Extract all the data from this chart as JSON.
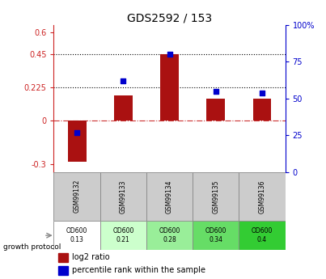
{
  "title": "GDS2592 / 153",
  "samples": [
    "GSM99132",
    "GSM99133",
    "GSM99134",
    "GSM99135",
    "GSM99136"
  ],
  "log2_ratio": [
    -0.28,
    0.17,
    0.45,
    0.15,
    0.15
  ],
  "percentile_rank": [
    27,
    62,
    80,
    55,
    54
  ],
  "bar_color": "#aa1111",
  "dot_color": "#0000cc",
  "left_yticks": [
    -0.3,
    0.0,
    0.225,
    0.45,
    0.6
  ],
  "left_ylabels": [
    "-0.3",
    "0",
    "0.225",
    "0.45",
    "0.6"
  ],
  "right_yticks": [
    0,
    25,
    50,
    75,
    100
  ],
  "right_ylabels": [
    "0",
    "25",
    "50",
    "75",
    "100%"
  ],
  "ymin": -0.35,
  "ymax": 0.65,
  "hlines": [
    0.225,
    0.45
  ],
  "zero_line": 0.0,
  "growth_protocol_label": "growth protocol",
  "protocol_values": [
    "OD600\n0.13",
    "OD600\n0.21",
    "OD600\n0.28",
    "OD600\n0.34",
    "OD600\n0.4"
  ],
  "cell_colors": [
    "#ffffff",
    "#ccffcc",
    "#99ee99",
    "#66dd66",
    "#33cc33"
  ],
  "gsm_cell_color": "#cccccc",
  "bg_color": "#ffffff"
}
